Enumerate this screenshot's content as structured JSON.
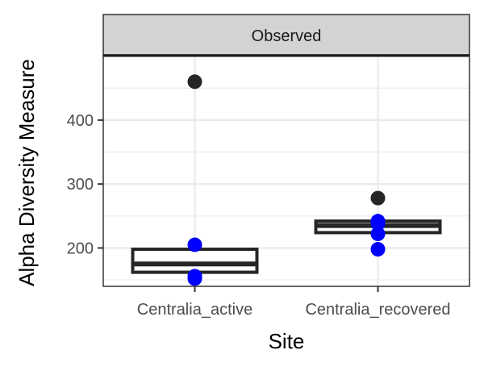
{
  "chart_data": {
    "type": "box",
    "facet_label": "Observed",
    "xlabel": "Site",
    "ylabel": "Alpha Diversity Measure",
    "categories": [
      "Centralia_active",
      "Centralia_recovered"
    ],
    "ylim": [
      140,
      502
    ],
    "yticks": [
      200,
      300,
      400
    ],
    "grid": true,
    "boxes": [
      {
        "category": "Centralia_active",
        "q1": 162,
        "median": 175,
        "q3": 198,
        "whisker_low": 162,
        "whisker_high": 198,
        "outliers": [
          460
        ]
      },
      {
        "category": "Centralia_recovered",
        "q1": 224,
        "median": 235,
        "q3": 242,
        "whisker_low": 224,
        "whisker_high": 242,
        "outliers": [
          278
        ]
      }
    ],
    "points": [
      {
        "category": "Centralia_active",
        "values": [
          152,
          156,
          205,
          460
        ]
      },
      {
        "category": "Centralia_recovered",
        "values": [
          198,
          222,
          238,
          242,
          278
        ]
      }
    ],
    "colors": {
      "points": "#0000ff",
      "outlier": "#262626",
      "box": "#262626",
      "grid": "#ebebeb",
      "strip": "#d9d9d9"
    }
  }
}
